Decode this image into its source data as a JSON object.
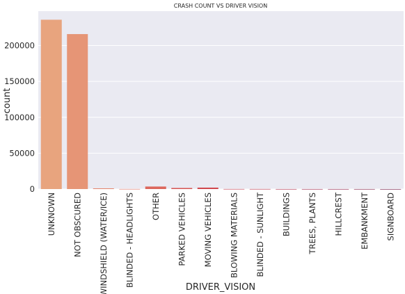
{
  "chart_data": {
    "type": "bar",
    "title": "CRASH COUNT VS DRIVER VISION",
    "xlabel": "DRIVER_VISION",
    "ylabel": "count",
    "categories": [
      "UNKNOWN",
      "NOT OBSCURED",
      "WINDSHIELD (WATER/ICE)",
      "BLINDED - HEADLIGHTS",
      "OTHER",
      "PARKED VEHICLES",
      "MOVING VEHICLES",
      "BLOWING MATERIALS",
      "BLINDED - SUNLIGHT",
      "BUILDINGS",
      "TREES, PLANTS",
      "HILLCREST",
      "EMBANKMENT",
      "SIGNBOARD"
    ],
    "values": [
      236000,
      216000,
      1000,
      100,
      3500,
      1500,
      2000,
      100,
      100,
      50,
      50,
      50,
      50,
      20
    ],
    "colors": [
      "#e8a47e",
      "#e69576",
      "#e3856e",
      "#e07665",
      "#dc675d",
      "#d75756",
      "#d0484f",
      "#c63a4b",
      "#ba2f47",
      "#ac2444",
      "#9c1b42",
      "#8b153f",
      "#7a103c",
      "#6a0b39"
    ],
    "ylim": [
      0,
      248000
    ],
    "yticks": [
      0,
      50000,
      100000,
      150000,
      200000
    ],
    "ytick_labels": [
      "0",
      "50000",
      "100000",
      "150000",
      "200000"
    ],
    "grid": true,
    "background": "#eaeaf2"
  }
}
